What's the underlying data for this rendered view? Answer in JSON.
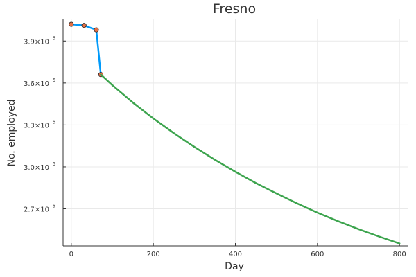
{
  "chart_data": {
    "type": "line",
    "title": "Fresno",
    "xlabel": "Day",
    "ylabel": "No. employed",
    "xlim": [
      -20,
      820
    ],
    "ylim": [
      243500,
      405500
    ],
    "grid": true,
    "legend": "none",
    "x_ticks": [
      {
        "value": 0,
        "label": "0"
      },
      {
        "value": 200,
        "label": "200"
      },
      {
        "value": 400,
        "label": "400"
      },
      {
        "value": 600,
        "label": "600"
      },
      {
        "value": 800,
        "label": "800"
      }
    ],
    "y_ticks": [
      {
        "value": 270000,
        "label": "2.7×10",
        "exp": "5"
      },
      {
        "value": 300000,
        "label": "3.0×10",
        "exp": "5"
      },
      {
        "value": 330000,
        "label": "3.3×10",
        "exp": "5"
      },
      {
        "value": 360000,
        "label": "3.6×10",
        "exp": "5"
      },
      {
        "value": 390000,
        "label": "3.9×10",
        "exp": "5"
      }
    ],
    "series": [
      {
        "style": "line",
        "color": "#009AFA",
        "x": [
          0,
          31,
          61,
          72
        ],
        "y": [
          402000,
          401200,
          398000,
          366000
        ]
      },
      {
        "style": "markers",
        "color": "#E26F46",
        "x": [
          0,
          31,
          61,
          72
        ],
        "y": [
          402000,
          401200,
          398000,
          366000
        ]
      },
      {
        "style": "line",
        "color": "#3DA44E",
        "x": [
          72,
          100,
          150,
          200,
          250,
          300,
          350,
          400,
          450,
          500,
          550,
          600,
          650,
          700,
          750,
          800
        ],
        "y": [
          366000,
          358500,
          346000,
          334600,
          324100,
          314300,
          305100,
          296500,
          288400,
          281000,
          273900,
          267300,
          261200,
          255500,
          250200,
          245200
        ]
      }
    ]
  }
}
